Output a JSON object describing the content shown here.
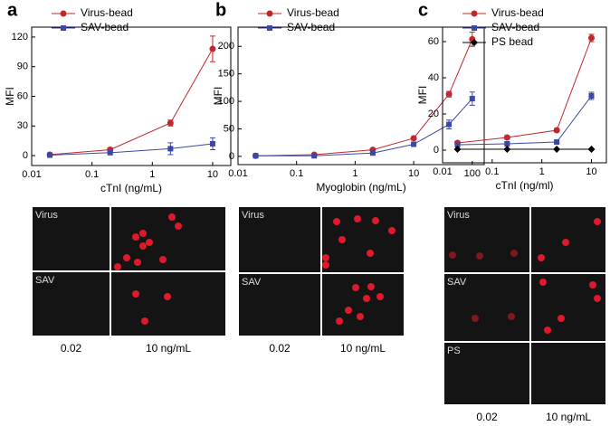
{
  "panels": [
    {
      "label": "a",
      "rows": [
        "Virus",
        "SAV"
      ],
      "columns": [
        "0.02",
        "10 ng/mL"
      ]
    },
    {
      "label": "b",
      "rows": [
        "Virus",
        "SAV"
      ],
      "columns": [
        "0.02",
        "10 ng/mL"
      ]
    },
    {
      "label": "c",
      "rows": [
        "Virus",
        "SAV",
        "PS"
      ],
      "columns": [
        "0.02",
        "10 ng/mL"
      ]
    }
  ],
  "chart_data": [
    {
      "type": "line",
      "xlabel": "cTnI (ng/mL)",
      "ylabel": "MFI",
      "xscale": "log",
      "legend": "upper left",
      "x": [
        0.02,
        0.2,
        2,
        10
      ],
      "xlim": [
        0.01,
        20
      ],
      "xticks": [
        0.01,
        0.1,
        1,
        10
      ],
      "ylim": [
        -10,
        130
      ],
      "yticks": [
        0,
        30,
        60,
        90,
        120
      ],
      "series": [
        {
          "name": "Virus-bead",
          "color": "#c0282d",
          "marker": "circle",
          "values": [
            1,
            6,
            33,
            108
          ],
          "errors": [
            1,
            2,
            3,
            13
          ]
        },
        {
          "name": "SAV-bead",
          "color": "#3a48a8",
          "marker": "square",
          "values": [
            0.5,
            3,
            7,
            12
          ],
          "errors": [
            0.5,
            1,
            6,
            6
          ]
        }
      ]
    },
    {
      "type": "line",
      "xlabel": "Myoglobin (ng/mL)",
      "ylabel": "MFI",
      "xscale": "log",
      "legend": "upper left",
      "x": [
        0.02,
        0.2,
        2,
        10,
        40,
        100
      ],
      "xlim": [
        0.01,
        160
      ],
      "xticks": [
        0.01,
        0.1,
        1,
        10,
        100
      ],
      "ylim": [
        -15,
        235
      ],
      "yticks": [
        0,
        50,
        100,
        150,
        200
      ],
      "series": [
        {
          "name": "Virus-bead",
          "color": "#c0282d",
          "marker": "circle",
          "values": [
            1,
            3,
            12,
            33,
            113,
            213
          ],
          "errors": [
            0,
            1,
            1,
            3,
            5,
            13
          ]
        },
        {
          "name": "SAV-bead",
          "color": "#3a48a8",
          "marker": "square",
          "values": [
            1,
            1,
            6,
            22,
            58,
            105
          ],
          "errors": [
            0,
            0,
            1,
            2,
            8,
            12
          ]
        }
      ]
    },
    {
      "type": "line",
      "xlabel": "cTnI (ng/ml)",
      "ylabel": "MFI",
      "xscale": "log",
      "legend": "upper left",
      "x": [
        0.02,
        0.2,
        2,
        10
      ],
      "xlim": [
        0.01,
        20
      ],
      "xticks": [
        0.01,
        0.1,
        1,
        10
      ],
      "ylim": [
        -7,
        68
      ],
      "yticks": [
        0,
        20,
        40,
        60
      ],
      "series": [
        {
          "name": "Virus-bead",
          "color": "#c0282d",
          "marker": "circle",
          "values": [
            4,
            7,
            11,
            62
          ],
          "errors": [
            1,
            1,
            1,
            2
          ]
        },
        {
          "name": "SAV-bead",
          "color": "#3a48a8",
          "marker": "square",
          "values": [
            3,
            3.5,
            4.5,
            30
          ],
          "errors": [
            0.5,
            0.5,
            0.5,
            2
          ]
        },
        {
          "name": "PS bead",
          "color": "#000000",
          "marker": "diamond",
          "values": [
            0.5,
            0.5,
            0.5,
            0.5
          ],
          "errors": [
            0,
            0,
            0,
            0
          ]
        }
      ]
    }
  ]
}
